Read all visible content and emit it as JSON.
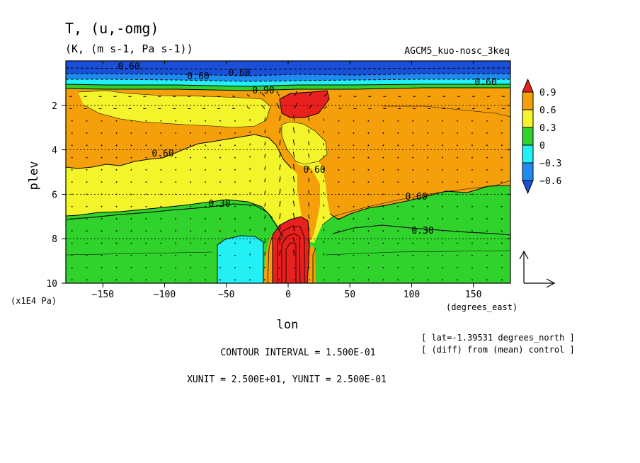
{
  "chart_data": {
    "type": "contour",
    "title": "T, (u,-omg)",
    "subtitle": "(K, (m s-1, Pa s-1))",
    "experiment_label": "AGCM5_kuo-nosc_3keq",
    "xlabel": "lon",
    "xunit_label": "(degrees_east)",
    "ylabel": "plev",
    "yunit_label": "(x1E4 Pa)",
    "xlim": [
      -180,
      180
    ],
    "ylim": [
      0,
      10
    ],
    "y_inverted": true,
    "x_ticks": [
      -150,
      -100,
      -50,
      0,
      50,
      100,
      150
    ],
    "y_ticks": [
      2,
      4,
      6,
      8,
      10
    ],
    "colorbar": {
      "labels": [
        "0.9",
        "0.6",
        "0.3",
        "0",
        "-0.3",
        "-0.6"
      ],
      "colors": [
        "#e8201e",
        "#f5a00a",
        "#f4f42a",
        "#30d22c",
        "#22f0f4",
        "#1f8af0",
        "#1a4fd8"
      ]
    },
    "contour_labels": [
      "0.60",
      "0.60",
      "0.60",
      "0.60",
      "0.60",
      "0.30",
      "0.30",
      "0.60",
      "0.90",
      "0.60"
    ],
    "info_lines": [
      "[ lat=-1.39531 degrees_north ]",
      "[ (diff) from (mean) control ]"
    ],
    "contour_interval": "CONTOUR INTERVAL = 1.500E-01",
    "vector_units": "XUNIT = 2.500E+01, YUNIT = 2.500E-01",
    "fill_regions": [
      {
        "level": "0.6-0.9",
        "lon_range": [
          -180,
          180
        ],
        "plev_range": [
          1.2,
          4.2
        ]
      },
      {
        "level": "0.3-0.6",
        "lon_range": [
          -180,
          180
        ],
        "plev_range": [
          4.0,
          7.5
        ]
      },
      {
        "level": "0-0.3",
        "lon_range": [
          -180,
          180
        ],
        "plev_range": [
          7.0,
          10
        ]
      },
      {
        "level": "-0.3-0",
        "lon_range": [
          -55,
          -28
        ],
        "plev_range": [
          8.0,
          10
        ]
      },
      {
        "level": ">0.9",
        "lon_range": [
          -15,
          15
        ],
        "plev_range": [
          7.3,
          10
        ]
      },
      {
        "level": ">0.9",
        "lon_range": [
          -8,
          35
        ],
        "plev_range": [
          1.3,
          2.6
        ]
      },
      {
        "level": "<-0.6",
        "lon_range": [
          -180,
          180
        ],
        "plev_range": [
          0,
          1.0
        ]
      }
    ]
  }
}
